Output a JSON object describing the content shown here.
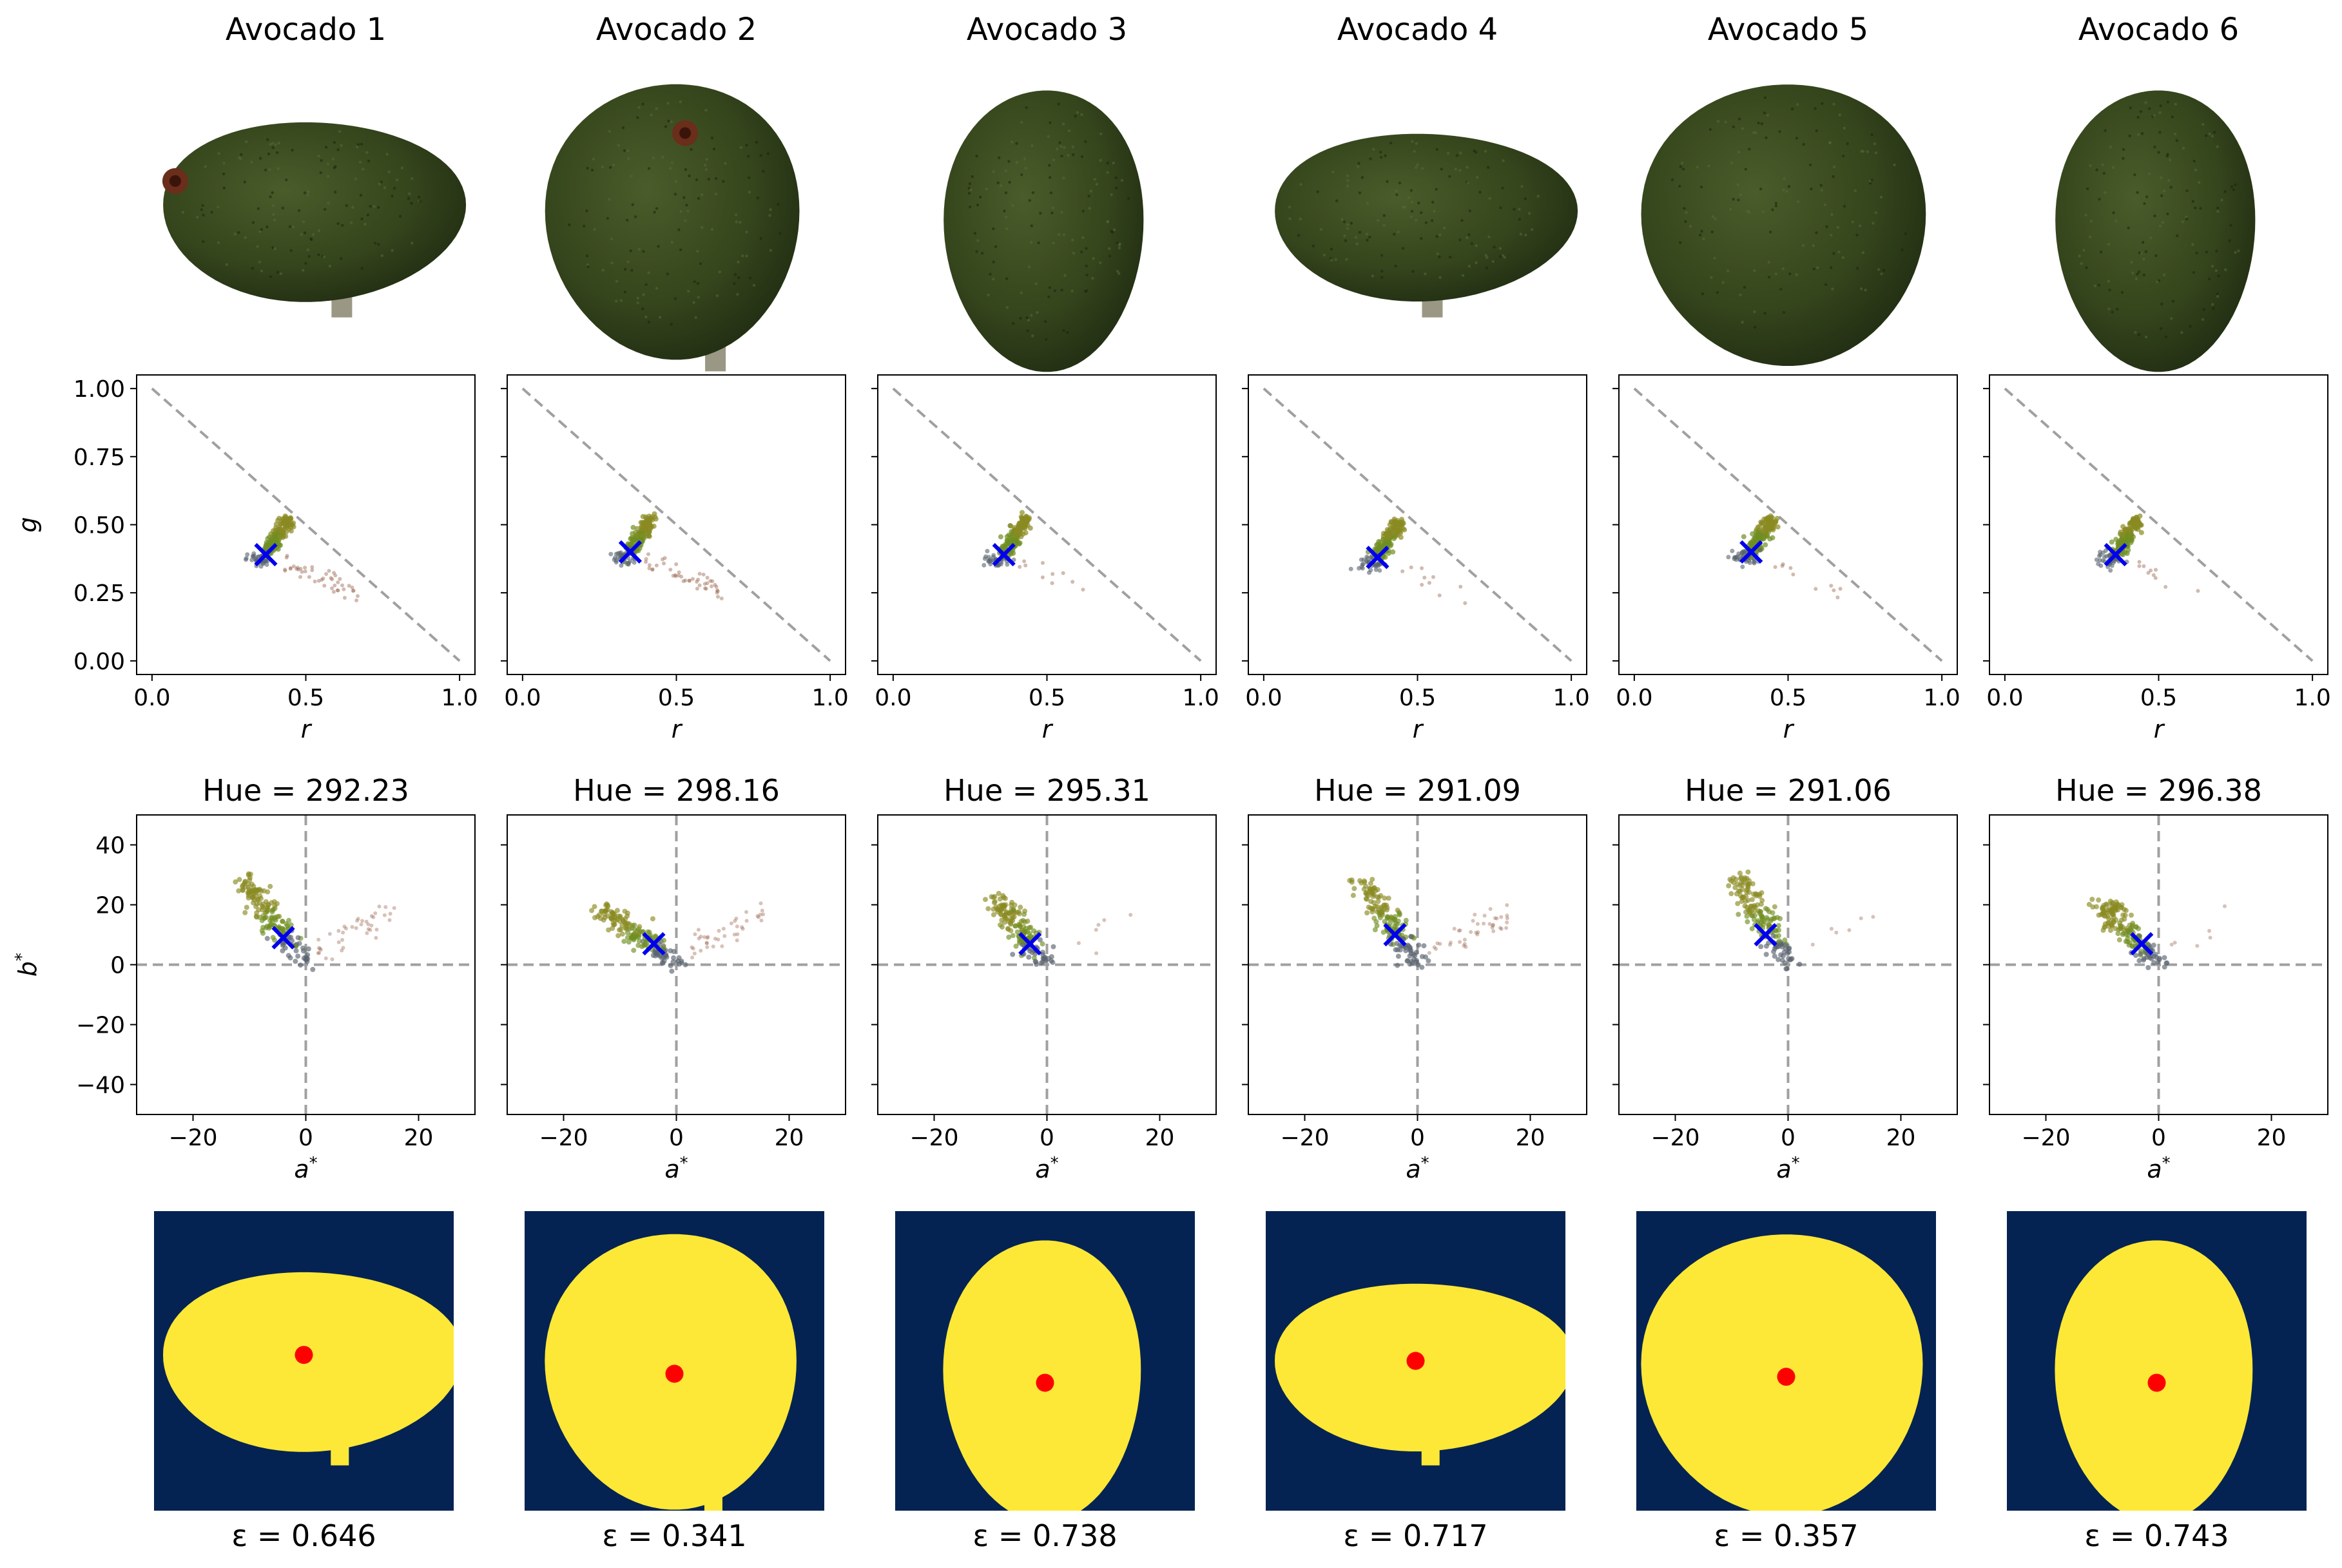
{
  "figure": {
    "columns": [
      "Avocado 1",
      "Avocado 2",
      "Avocado 3",
      "Avocado 4",
      "Avocado 5",
      "Avocado 6"
    ],
    "hue_prefix": "Hue = ",
    "eps_prefix": "ε = "
  },
  "palette": {
    "avocado_dark": "#1f2b12",
    "avocado_mid": "#35451c",
    "avocado_light": "#4a5c2a",
    "pedicel": "#9a9884",
    "stem_spot": "#6a2e1a",
    "mask_bg": "#042352",
    "mask_fg": "#fde837",
    "centroid_mask": "#ff0000",
    "centroid_cross": "#0000ee",
    "reference_line": "#a0a0a0",
    "cluster_green": "#6f8f22",
    "cluster_olive": "#8a8a22",
    "cluster_grey": "#5a6470",
    "cluster_brown": "#9a6650"
  },
  "chart_data": [
    {
      "type": "scatter",
      "title": "",
      "xlabel": "r",
      "ylabel": "g",
      "xlim": [
        -0.05,
        1.05
      ],
      "ylim": [
        -0.05,
        1.05
      ],
      "xticks": [
        "0.0",
        "0.5",
        "1.0"
      ],
      "yticks": [
        "0.00",
        "0.25",
        "0.50",
        "0.75",
        "1.00"
      ],
      "reference_line": {
        "from": [
          0,
          1
        ],
        "to": [
          1,
          0
        ]
      },
      "centroids": [
        {
          "column": "Avocado 1",
          "r": 0.37,
          "g": 0.39
        },
        {
          "column": "Avocado 2",
          "r": 0.35,
          "g": 0.4
        },
        {
          "column": "Avocado 3",
          "r": 0.36,
          "g": 0.39
        },
        {
          "column": "Avocado 4",
          "r": 0.37,
          "g": 0.38
        },
        {
          "column": "Avocado 5",
          "r": 0.38,
          "g": 0.4
        },
        {
          "column": "Avocado 6",
          "r": 0.36,
          "g": 0.39
        }
      ]
    },
    {
      "type": "scatter",
      "title": "",
      "xlabel": "a*",
      "ylabel": "b*",
      "xlim": [
        -30,
        30
      ],
      "ylim": [
        -50,
        50
      ],
      "xticks": [
        "−20",
        "0",
        "20"
      ],
      "yticks": [
        "40",
        "20",
        "0",
        "−20",
        "−40"
      ],
      "centroids": [
        {
          "column": "Avocado 1",
          "a": -4,
          "b": 9,
          "hue": "292.23"
        },
        {
          "column": "Avocado 2",
          "a": -4,
          "b": 7,
          "hue": "298.16"
        },
        {
          "column": "Avocado 3",
          "a": -3,
          "b": 7,
          "hue": "295.31"
        },
        {
          "column": "Avocado 4",
          "a": -4,
          "b": 10,
          "hue": "291.09"
        },
        {
          "column": "Avocado 5",
          "a": -4,
          "b": 10,
          "hue": "291.06"
        },
        {
          "column": "Avocado 6",
          "a": -3,
          "b": 7,
          "hue": "296.38"
        }
      ]
    }
  ],
  "masks": [
    {
      "column": "Avocado 1",
      "eccentricity": "0.646"
    },
    {
      "column": "Avocado 2",
      "eccentricity": "0.341"
    },
    {
      "column": "Avocado 3",
      "eccentricity": "0.738"
    },
    {
      "column": "Avocado 4",
      "eccentricity": "0.717"
    },
    {
      "column": "Avocado 5",
      "eccentricity": "0.357"
    },
    {
      "column": "Avocado 6",
      "eccentricity": "0.743"
    }
  ]
}
